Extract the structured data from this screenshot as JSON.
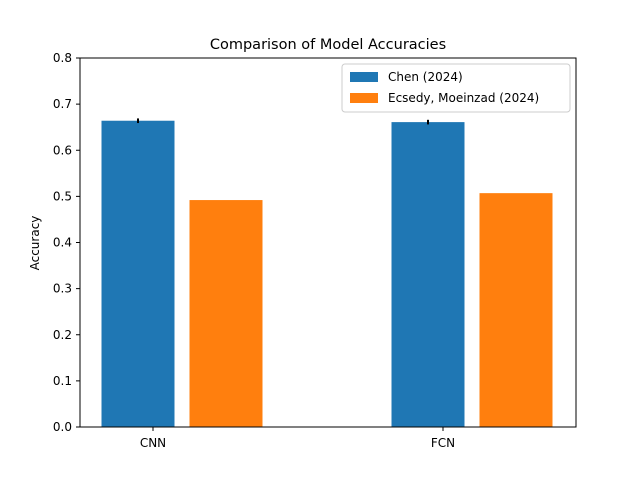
{
  "chart_data": {
    "type": "bar",
    "title": "Comparison of Model Accuracies",
    "xlabel": "",
    "ylabel": "Accuracy",
    "categories": [
      "CNN",
      "FCN"
    ],
    "series": [
      {
        "name": "Chen (2024)",
        "values": [
          0.664,
          0.661
        ],
        "errors": [
          0.005,
          0.005
        ],
        "color": "#1f77b4"
      },
      {
        "name": "Ecsedy, Moeinzad (2024)",
        "values": [
          0.492,
          0.507
        ],
        "color": "#ff7f0e"
      }
    ],
    "ylim": [
      0,
      0.8
    ],
    "yticks": [
      "0.0",
      "0.1",
      "0.2",
      "0.3",
      "0.4",
      "0.5",
      "0.6",
      "0.7",
      "0.8"
    ],
    "grid": false,
    "legend_position": "top-right"
  }
}
